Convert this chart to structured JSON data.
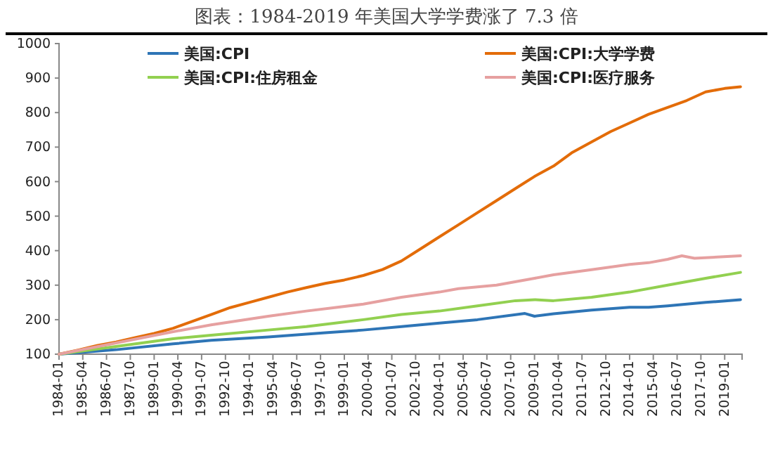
{
  "chart_data": {
    "type": "line",
    "title": "图表：1984-2019 年美国大学学费涨了 7.3 倍",
    "xlim": [
      "1984-01",
      "2019-12"
    ],
    "xticks": [
      "1984-01",
      "1985-04",
      "1986-07",
      "1987-10",
      "1989-01",
      "1990-04",
      "1991-07",
      "1992-10",
      "1994-01",
      "1995-04",
      "1996-07",
      "1997-10",
      "1999-01",
      "2000-04",
      "2001-07",
      "2002-10",
      "2004-01",
      "2005-04",
      "2006-07",
      "2007-10",
      "2009-01",
      "2010-04",
      "2011-07",
      "2012-10",
      "2014-01",
      "2015-04",
      "2016-07",
      "2017-10",
      "2019-01"
    ],
    "ylim": [
      100,
      1000
    ],
    "yticks": [
      100,
      200,
      300,
      400,
      500,
      600,
      700,
      800,
      900,
      1000
    ],
    "grid": false,
    "legend": "top",
    "marker": "none",
    "line_style": "solid",
    "series": [
      {
        "name": "美国:CPI",
        "color": "#2e75b6",
        "x": [
          "1984-01",
          "1987-01",
          "1990-01",
          "1992-01",
          "1995-01",
          "1998-01",
          "2000-01",
          "2002-01",
          "2004-01",
          "2006-01",
          "2008-07",
          "2009-01",
          "2010-01",
          "2012-01",
          "2014-01",
          "2015-01",
          "2016-01",
          "2018-01",
          "2019-11"
        ],
        "values": [
          100,
          113,
          130,
          140,
          150,
          162,
          170,
          180,
          190,
          200,
          218,
          210,
          217,
          228,
          236,
          236,
          240,
          250,
          258
        ]
      },
      {
        "name": "美国:CPI:大学学费",
        "color": "#e36c09",
        "x": [
          "1984-01",
          "1985-01",
          "1986-01",
          "1987-01",
          "1988-01",
          "1989-01",
          "1990-01",
          "1991-01",
          "1992-01",
          "1993-01",
          "1994-01",
          "1995-01",
          "1996-01",
          "1997-01",
          "1998-01",
          "1999-01",
          "2000-01",
          "2001-01",
          "2002-01",
          "2003-01",
          "2004-01",
          "2005-01",
          "2006-01",
          "2007-01",
          "2008-01",
          "2009-01",
          "2010-01",
          "2011-01",
          "2012-01",
          "2013-01",
          "2014-01",
          "2015-01",
          "2016-01",
          "2017-01",
          "2018-01",
          "2019-01",
          "2019-11"
        ],
        "values": [
          100,
          112,
          125,
          135,
          148,
          160,
          175,
          195,
          215,
          235,
          250,
          265,
          280,
          293,
          305,
          315,
          328,
          345,
          370,
          405,
          440,
          475,
          510,
          545,
          580,
          615,
          645,
          685,
          715,
          745,
          770,
          795,
          815,
          835,
          860,
          870,
          875
        ]
      },
      {
        "name": "美国:CPI:住房租金",
        "color": "#92d050",
        "x": [
          "1984-01",
          "1990-01",
          "1992-01",
          "1995-01",
          "1997-01",
          "2000-01",
          "2002-01",
          "2004-01",
          "2006-01",
          "2008-01",
          "2009-01",
          "2010-01",
          "2012-01",
          "2014-01",
          "2016-01",
          "2018-01",
          "2019-11"
        ],
        "values": [
          100,
          145,
          155,
          170,
          180,
          200,
          215,
          225,
          240,
          255,
          258,
          255,
          265,
          280,
          300,
          320,
          337
        ]
      },
      {
        "name": "美国:CPI:医疗服务",
        "color": "#e6a0a0",
        "x": [
          "1984-01",
          "1990-01",
          "1992-01",
          "1995-01",
          "1997-01",
          "2000-01",
          "2002-01",
          "2004-01",
          "2005-01",
          "2007-01",
          "2009-01",
          "2010-01",
          "2012-01",
          "2014-01",
          "2015-01",
          "2016-01",
          "2016-10",
          "2017-06",
          "2019-11"
        ],
        "values": [
          100,
          165,
          185,
          210,
          225,
          245,
          265,
          280,
          290,
          300,
          320,
          330,
          345,
          360,
          365,
          375,
          385,
          378,
          385
        ]
      }
    ]
  }
}
